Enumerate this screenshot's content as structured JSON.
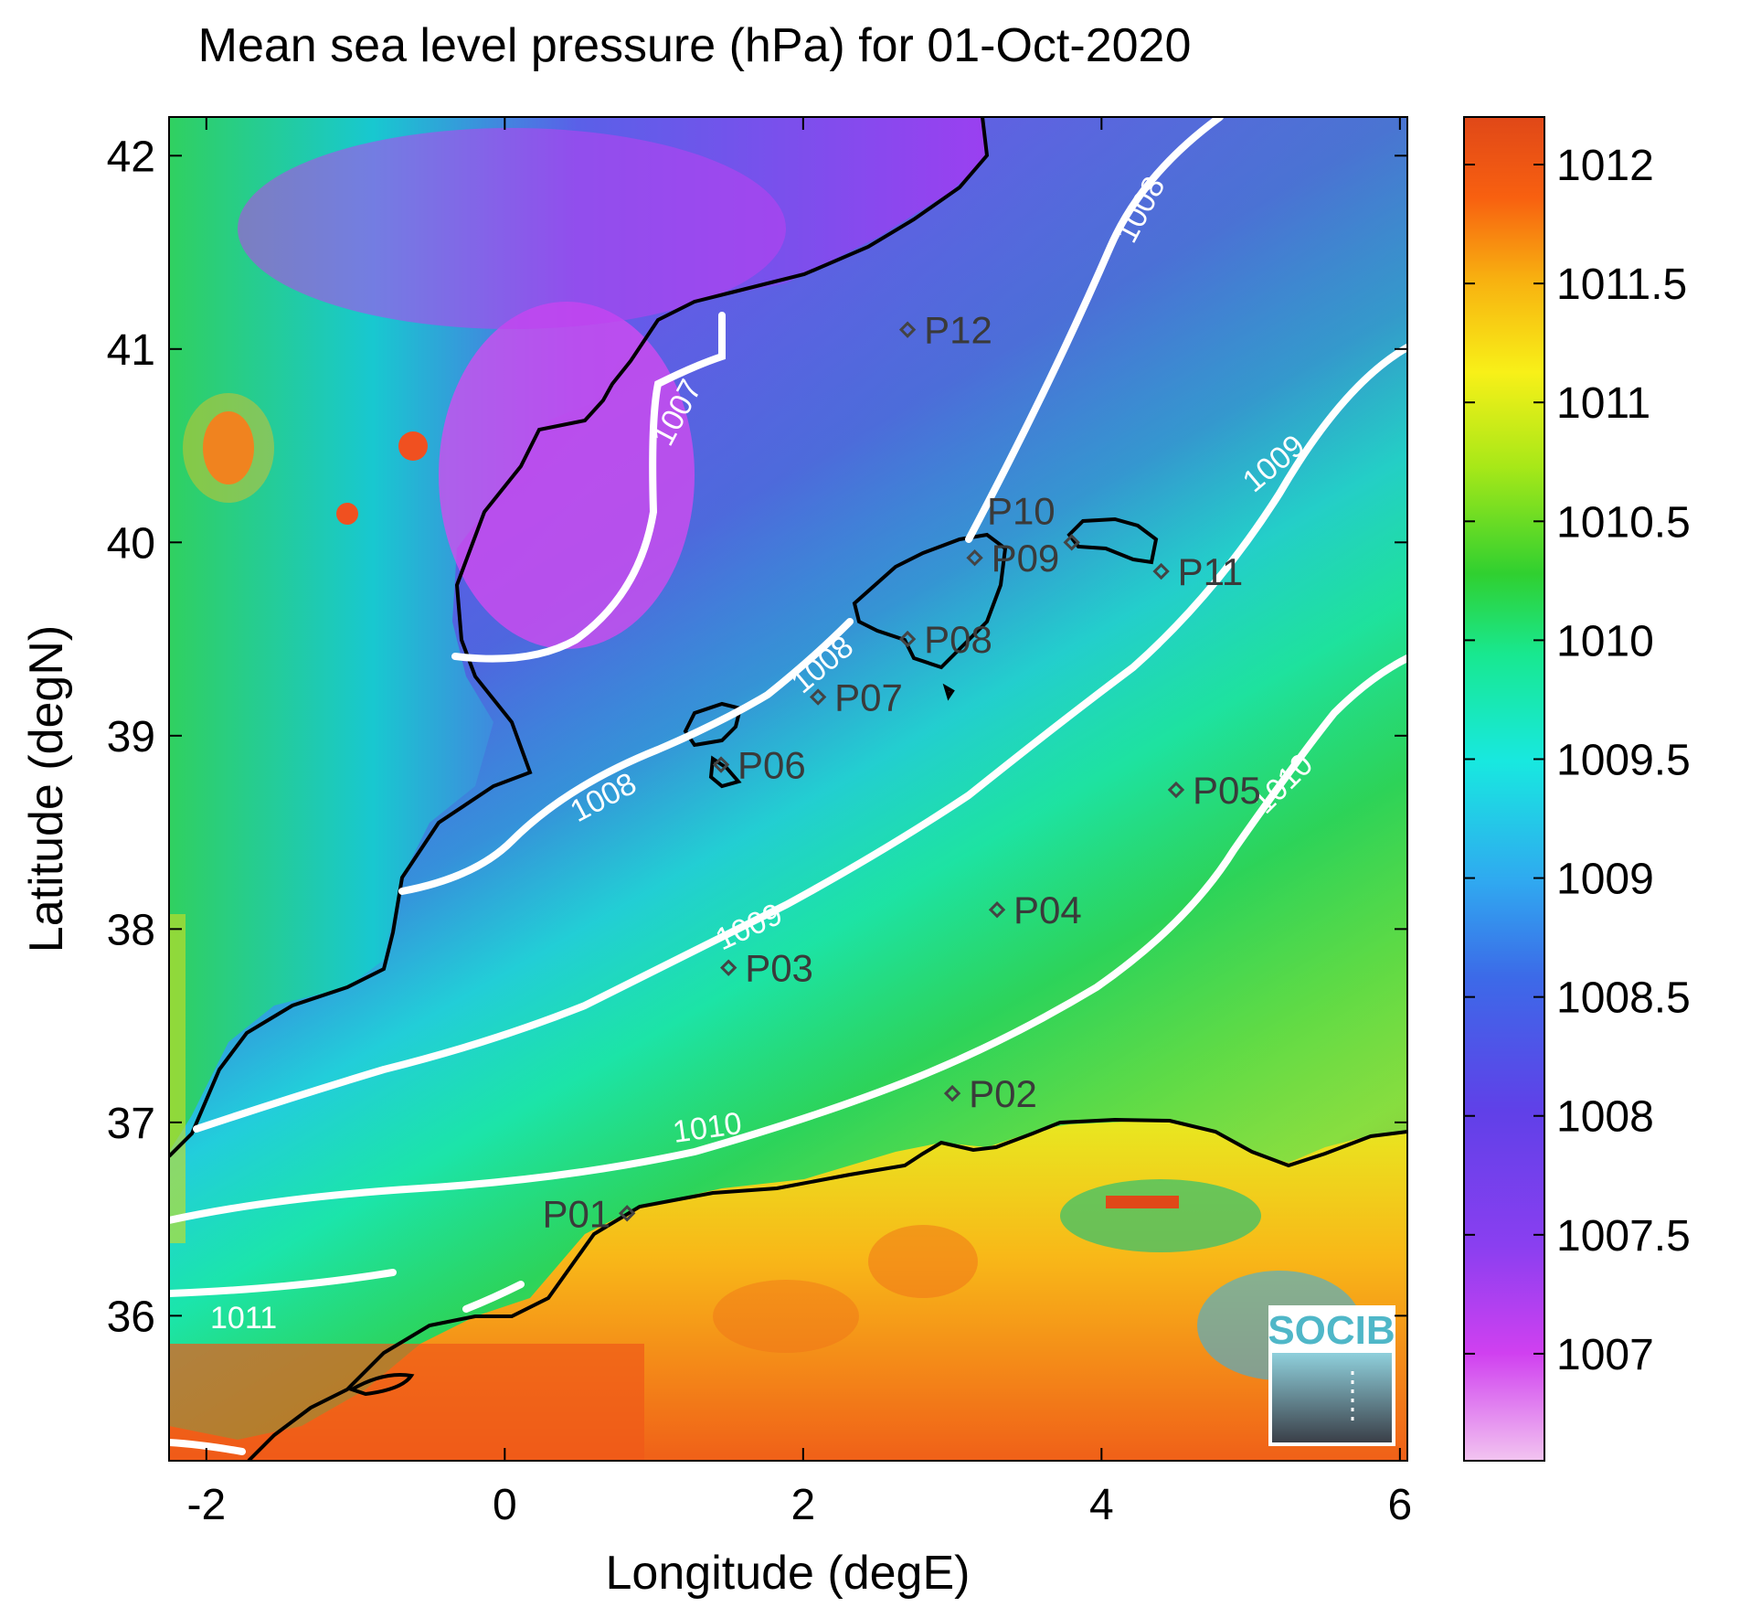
{
  "title": "Mean sea level pressure (hPa) for 01-Oct-2020",
  "axes": {
    "xlabel": "Longitude (degE)",
    "ylabel": "Latitude (degN)",
    "xticks": [
      "-2",
      "0",
      "2",
      "4",
      "6"
    ],
    "yticks": [
      "42",
      "41",
      "40",
      "39",
      "38",
      "37",
      "36"
    ],
    "xlim": [
      -2.25,
      6.05
    ],
    "ylim": [
      35.25,
      42.2
    ]
  },
  "colorbar": {
    "ticks": [
      "1012",
      "1011.5",
      "1011",
      "1010.5",
      "1010",
      "1009.5",
      "1009",
      "1008.5",
      "1008",
      "1007.5",
      "1007"
    ],
    "range": [
      1006.55,
      1012.2
    ],
    "colormap": [
      "#f2c4f0",
      "#d040f0",
      "#8a3ff0",
      "#6040e8",
      "#3c6ae8",
      "#30a8f0",
      "#18e8e0",
      "#18e890",
      "#30d030",
      "#a8e818",
      "#f8f018",
      "#f8b010",
      "#f86010",
      "#e04818"
    ]
  },
  "contour_labels": [
    "1007",
    "1008",
    "1008",
    "1008",
    "1009",
    "1009",
    "1010",
    "1010",
    "1011"
  ],
  "stations": [
    {
      "id": "P01",
      "lon": 0.82,
      "lat": 36.53
    },
    {
      "id": "P02",
      "lon": 3.0,
      "lat": 37.15
    },
    {
      "id": "P03",
      "lon": 1.5,
      "lat": 37.8
    },
    {
      "id": "P04",
      "lon": 3.3,
      "lat": 38.1
    },
    {
      "id": "P05",
      "lon": 4.5,
      "lat": 38.72
    },
    {
      "id": "P06",
      "lon": 1.45,
      "lat": 38.85
    },
    {
      "id": "P07",
      "lon": 2.1,
      "lat": 39.2
    },
    {
      "id": "P08",
      "lon": 2.7,
      "lat": 39.5
    },
    {
      "id": "P09",
      "lon": 3.15,
      "lat": 39.92
    },
    {
      "id": "P10",
      "lon": 3.8,
      "lat": 40.0
    },
    {
      "id": "P11",
      "lon": 4.4,
      "lat": 39.85
    },
    {
      "id": "P12",
      "lon": 2.7,
      "lat": 41.1
    }
  ],
  "logo": {
    "text": "SOCIB"
  },
  "colors": {
    "contour": "#ffffff",
    "coastline": "#000000",
    "station": "#444444"
  }
}
